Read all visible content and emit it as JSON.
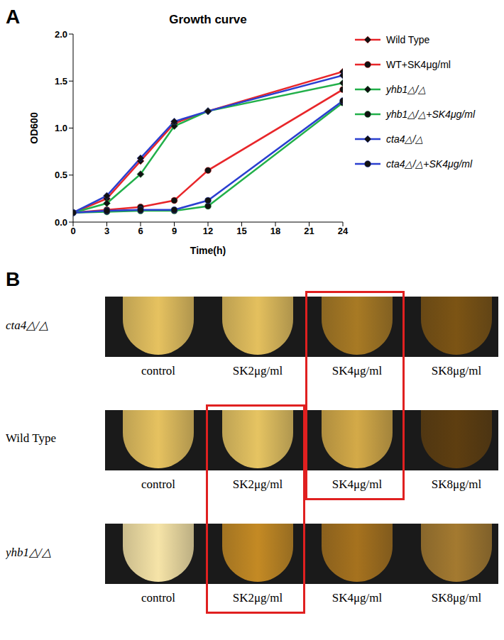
{
  "chart_data": {
    "panel_label": "A",
    "type": "line",
    "title": "Growth  curve",
    "x_label": "Time(h)",
    "y_label": "OD600",
    "x": [
      0,
      3,
      6,
      9,
      12,
      24
    ],
    "xlim": [
      0,
      24
    ],
    "xticks": [
      0,
      3,
      6,
      9,
      12,
      15,
      18,
      21,
      24
    ],
    "ylim": [
      0,
      2
    ],
    "yticks": [
      {
        "value": 0,
        "label": "0.0"
      },
      {
        "value": 0.5,
        "label": "0.5"
      },
      {
        "value": 1,
        "label": "1.0"
      },
      {
        "value": 1.5,
        "label": "1.5"
      },
      {
        "value": 2,
        "label": "2.0"
      }
    ],
    "legend": "right",
    "series": [
      {
        "name": "Wild Type",
        "color": "#e8262a",
        "marker": "diamond",
        "values": [
          0.1,
          0.25,
          0.65,
          1.05,
          1.18,
          1.6
        ]
      },
      {
        "name": "WT+SK4μg/ml",
        "color": "#e8262a",
        "marker": "circle",
        "values": [
          0.1,
          0.13,
          0.16,
          0.23,
          0.55,
          1.41
        ]
      },
      {
        "name": "yhb1△/△",
        "color": "#22b04a",
        "marker": "diamond",
        "values": [
          0.1,
          0.2,
          0.51,
          1.02,
          1.18,
          1.48
        ]
      },
      {
        "name": "yhb1△/△+SK4μg/ml",
        "color": "#22b04a",
        "marker": "circle",
        "values": [
          0.1,
          0.11,
          0.12,
          0.12,
          0.17,
          1.27
        ]
      },
      {
        "name": "cta4△/△",
        "color": "#2a3fd0",
        "marker": "diamond",
        "values": [
          0.1,
          0.28,
          0.68,
          1.07,
          1.18,
          1.56
        ]
      },
      {
        "name": "cta4△/△+SK4μg/ml",
        "color": "#2a3fd0",
        "marker": "circle",
        "values": [
          0.1,
          0.12,
          0.13,
          0.13,
          0.23,
          1.29
        ]
      }
    ]
  },
  "panel_b": {
    "panel_label": "B",
    "highlight_color": "#e02020",
    "rows": [
      {
        "strain": "cta4△/△",
        "tubes": [
          "control",
          "SK2μg/ml",
          "SK4μg/ml",
          "SK8μg/ml"
        ],
        "colors": [
          "#e6c260",
          "#e4c05e",
          "#a87a24",
          "#7c5414"
        ]
      },
      {
        "strain": "Wild Type",
        "tubes": [
          "control",
          "SK2μg/ml",
          "SK4μg/ml",
          "SK8μg/ml"
        ],
        "colors": [
          "#e6c260",
          "#e6c462",
          "#d4aa48",
          "#5e3e10"
        ]
      },
      {
        "strain": "yhb1△/△",
        "tubes": [
          "control",
          "SK2μg/ml",
          "SK4μg/ml",
          "SK8μg/ml"
        ],
        "colors": [
          "#f6e4a8",
          "#c48a24",
          "#a6721e",
          "#a47a30"
        ]
      }
    ],
    "highlights": [
      {
        "column": "SK4μg/ml",
        "rows": [
          "cta4△/△",
          "Wild Type"
        ]
      },
      {
        "column": "SK2μg/ml",
        "rows": [
          "Wild Type",
          "yhb1△/△"
        ]
      }
    ]
  }
}
